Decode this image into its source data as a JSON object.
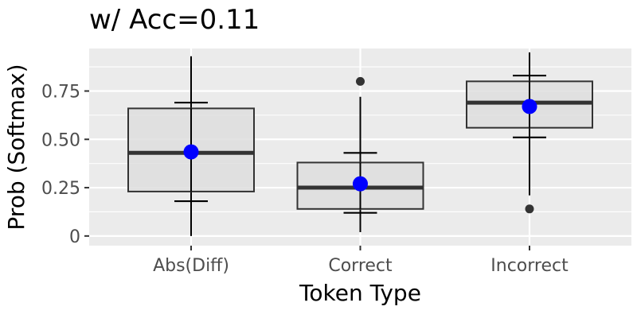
{
  "chart_data": {
    "type": "boxplot",
    "title": "w/ Acc=0.11",
    "xlabel": "Token Type",
    "ylabel": "Prob (Softmax)",
    "categories": [
      "Abs(Diff)",
      "Correct",
      "Incorrect"
    ],
    "yticks": [
      0,
      0.25,
      0.5,
      0.75
    ],
    "ytick_labels": [
      "0",
      "0.25",
      "0.50",
      "0.75"
    ],
    "ylim": [
      -0.05,
      0.97
    ],
    "grid": true,
    "boxes": [
      {
        "category": "Abs(Diff)",
        "whisker_low": 0.0,
        "q1": 0.23,
        "median": 0.43,
        "q3": 0.66,
        "whisker_high": 0.93,
        "mean": 0.435,
        "ci_low": 0.18,
        "ci_high": 0.69,
        "outliers": []
      },
      {
        "category": "Correct",
        "whisker_low": 0.02,
        "q1": 0.14,
        "median": 0.25,
        "q3": 0.38,
        "whisker_high": 0.72,
        "mean": 0.27,
        "ci_low": 0.12,
        "ci_high": 0.43,
        "outliers": [
          0.8
        ]
      },
      {
        "category": "Incorrect",
        "whisker_low": 0.21,
        "q1": 0.56,
        "median": 0.69,
        "q3": 0.8,
        "whisker_high": 0.95,
        "mean": 0.67,
        "ci_low": 0.51,
        "ci_high": 0.83,
        "outliers": [
          0.14
        ]
      }
    ],
    "colors": {
      "panel_bg": "#ebebeb",
      "grid": "#ffffff",
      "box_fill": "#dedede",
      "box_stroke": "#333333",
      "mean_point": "#0000ff",
      "outlier": "#333333"
    }
  }
}
